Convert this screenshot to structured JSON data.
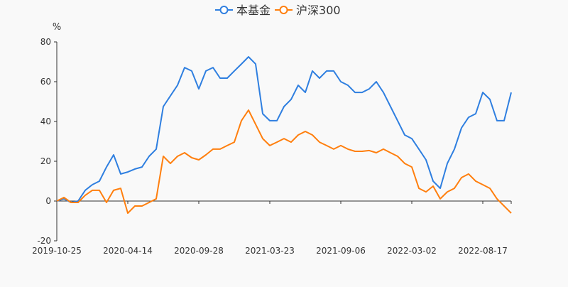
{
  "chart_data": {
    "type": "line",
    "title": "",
    "unit_label": "%",
    "xlabel": "",
    "ylabel": "",
    "ylim": [
      -20,
      80
    ],
    "yticks": [
      -20,
      0,
      20,
      40,
      60,
      80
    ],
    "x_tick_labels": [
      "2019-10-25",
      "2020-04-14",
      "2020-09-28",
      "2021-03-23",
      "2021-09-06",
      "2022-03-02",
      "2022-08-17"
    ],
    "legend_position": "top-center",
    "grid": false,
    "series": [
      {
        "name": "本基金",
        "color": "#2f7fe0",
        "values": [
          0,
          1.1,
          -0.7,
          0,
          5.4,
          8.2,
          10,
          17.1,
          23.2,
          13.6,
          14.6,
          16.1,
          17.1,
          22.5,
          26.1,
          47.5,
          52.9,
          58.2,
          67.1,
          65.4,
          56.4,
          65.4,
          67.1,
          61.8,
          61.8,
          65.4,
          68.9,
          72.5,
          68.9,
          43.9,
          40.4,
          40.4,
          47.5,
          51.1,
          58.2,
          54.6,
          65.4,
          61.8,
          65.4,
          65.4,
          60,
          58.2,
          54.6,
          54.6,
          56.4,
          60,
          54.6,
          47.5,
          40.4,
          33.2,
          31.4,
          26.1,
          20.7,
          10,
          6.4,
          18.9,
          26.1,
          36.8,
          42.1,
          43.9,
          54.6,
          51.1,
          40.4,
          40.4,
          54.6
        ]
      },
      {
        "name": "沪深300",
        "color": "#ff7f0e",
        "values": [
          0,
          1.8,
          -0.7,
          -0.7,
          2.9,
          5.4,
          5.4,
          -0.7,
          5.4,
          6.4,
          -6.1,
          -2.5,
          -2.5,
          -0.7,
          1.1,
          22.5,
          18.9,
          22.5,
          24.3,
          21.8,
          20.7,
          23.2,
          26.1,
          26.1,
          27.9,
          29.6,
          40.4,
          45.7,
          38.6,
          31.4,
          27.9,
          29.6,
          31.4,
          29.6,
          33.2,
          35,
          33.2,
          29.6,
          27.9,
          26.1,
          27.9,
          26.1,
          25,
          25,
          25.4,
          24.3,
          26.1,
          24.3,
          22.5,
          18.9,
          17.1,
          6.4,
          4.6,
          7.5,
          1.1,
          4.6,
          6.4,
          11.8,
          13.6,
          10,
          8.2,
          6.4,
          1.1,
          -2.5,
          -6.1
        ]
      }
    ]
  }
}
